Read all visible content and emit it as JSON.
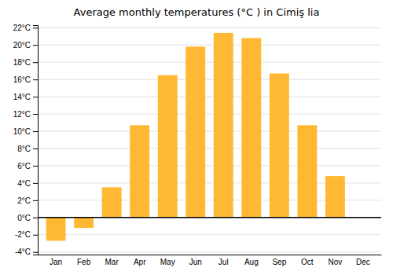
{
  "chart_data": {
    "type": "bar",
    "title": "Average monthly temperatures (°C ) in Cimiş lia",
    "categories": [
      "Jan",
      "Feb",
      "Mar",
      "Apr",
      "May",
      "Jun",
      "Jul",
      "Aug",
      "Sep",
      "Oct",
      "Nov",
      "Dec"
    ],
    "values": [
      -2.7,
      -1.2,
      3.5,
      10.7,
      16.5,
      19.8,
      21.4,
      20.8,
      16.7,
      10.7,
      4.8,
      0.0
    ],
    "color": "#FFB833",
    "ylim": [
      -4.3,
      22.3
    ],
    "yticks": [
      {
        "value": -4,
        "label": "-4°C"
      },
      {
        "value": -2,
        "label": "-2°C"
      },
      {
        "value": 0,
        "label": "0°C"
      },
      {
        "value": 2,
        "label": "2°C"
      },
      {
        "value": 4,
        "label": "4°C"
      },
      {
        "value": 6,
        "label": "6°C"
      },
      {
        "value": 8,
        "label": "8°C"
      },
      {
        "value": 10,
        "label": "10°C"
      },
      {
        "value": 12,
        "label": "12°C"
      },
      {
        "value": 14,
        "label": "14°C"
      },
      {
        "value": 16,
        "label": "16°C"
      },
      {
        "value": 18,
        "label": "18°C"
      },
      {
        "value": 20,
        "label": "20°C"
      },
      {
        "value": 22,
        "label": "22°C"
      }
    ],
    "grid": true
  }
}
